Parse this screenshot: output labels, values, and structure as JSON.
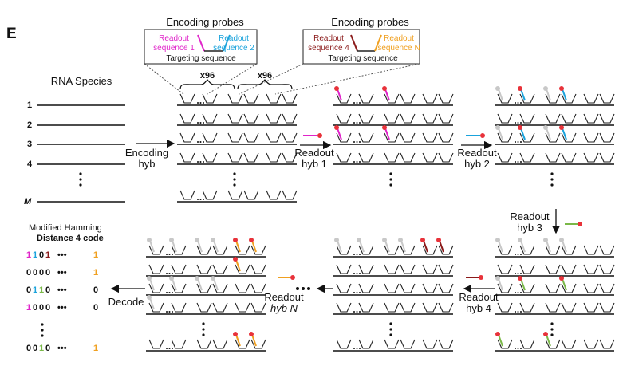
{
  "panel_letter": "E",
  "probe_box_left": {
    "title": "Encoding probes",
    "readout_a": [
      "Readout",
      "sequence 1"
    ],
    "readout_b": [
      "Readout",
      "sequence 2"
    ],
    "targeting": "Targeting sequence"
  },
  "probe_box_right": {
    "title": "Encoding probes",
    "readout_a": [
      "Readout",
      "sequence 4"
    ],
    "readout_b": [
      "Readout",
      "sequence N"
    ],
    "targeting": "Targeting sequence"
  },
  "multiplier": "x96",
  "rna_species_title": "RNA Species",
  "rna_rows": [
    "1",
    "2",
    "3",
    "4",
    "M"
  ],
  "steps": {
    "encoding_hyb": [
      "Encoding",
      "hyb"
    ],
    "readout_hyb_1": [
      "Readout",
      "hyb 1"
    ],
    "readout_hyb_2": [
      "Readout",
      "hyb 2"
    ],
    "readout_hyb_3": [
      "Readout",
      "hyb 3"
    ],
    "readout_hyb_4": [
      "Readout",
      "hyb 4"
    ],
    "readout_hyb_n": [
      "Readout",
      "hyb N"
    ],
    "decode": "Decode"
  },
  "code_title": [
    "Modified Hamming",
    "Distance 4 code"
  ],
  "code_rows": [
    [
      "1",
      "1",
      "0",
      "1",
      "1"
    ],
    [
      "0",
      "0",
      "0",
      "0",
      "1"
    ],
    [
      "0",
      "1",
      "1",
      "0",
      "0"
    ],
    [
      "1",
      "0",
      "0",
      "0",
      "0"
    ],
    [
      "0",
      "0",
      "1",
      "0",
      "1"
    ]
  ],
  "ellipsis": "•••",
  "colors": {
    "readout1": "#e024c9",
    "readout2": "#1aa3dc",
    "readout3": "#7ab848",
    "readout4": "#8b1a1a",
    "readoutN": "#f0a020",
    "dot": "#e8323a",
    "used_dot": "#c8c8c8"
  }
}
